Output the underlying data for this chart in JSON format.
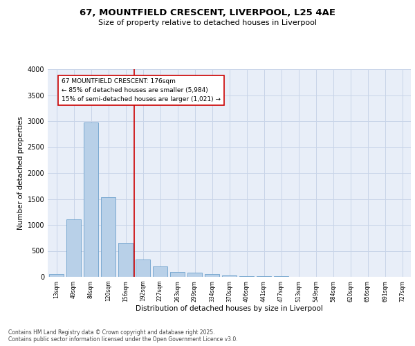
{
  "title_line1": "67, MOUNTFIELD CRESCENT, LIVERPOOL, L25 4AE",
  "title_line2": "Size of property relative to detached houses in Liverpool",
  "xlabel": "Distribution of detached houses by size in Liverpool",
  "ylabel": "Number of detached properties",
  "categories": [
    "13sqm",
    "49sqm",
    "84sqm",
    "120sqm",
    "156sqm",
    "192sqm",
    "227sqm",
    "263sqm",
    "299sqm",
    "334sqm",
    "370sqm",
    "406sqm",
    "441sqm",
    "477sqm",
    "513sqm",
    "549sqm",
    "584sqm",
    "620sqm",
    "656sqm",
    "691sqm",
    "727sqm"
  ],
  "values": [
    60,
    1110,
    2970,
    1530,
    650,
    330,
    195,
    95,
    75,
    50,
    30,
    20,
    15,
    10,
    5,
    5,
    5,
    5,
    2,
    2,
    2
  ],
  "bar_color": "#b8d0e8",
  "bar_edge_color": "#6ca0cc",
  "vline_x_index": 4.5,
  "vline_color": "#cc0000",
  "annotation_line1": "67 MOUNTFIELD CRESCENT: 176sqm",
  "annotation_line2": "← 85% of detached houses are smaller (5,984)",
  "annotation_line3": "15% of semi-detached houses are larger (1,021) →",
  "annotation_box_color": "#cc0000",
  "annotation_bg": "#ffffff",
  "ylim": [
    0,
    4000
  ],
  "yticks": [
    0,
    500,
    1000,
    1500,
    2000,
    2500,
    3000,
    3500,
    4000
  ],
  "grid_color": "#c8d4e8",
  "bg_color": "#e8eef8",
  "footer_line1": "Contains HM Land Registry data © Crown copyright and database right 2025.",
  "footer_line2": "Contains public sector information licensed under the Open Government Licence v3.0.",
  "title_fontsize": 9.5,
  "subtitle_fontsize": 8,
  "annotation_fontsize": 6.5,
  "ylabel_fontsize": 7.5,
  "xlabel_fontsize": 7.5,
  "xtick_fontsize": 5.5,
  "ytick_fontsize": 7,
  "footer_fontsize": 5.5
}
